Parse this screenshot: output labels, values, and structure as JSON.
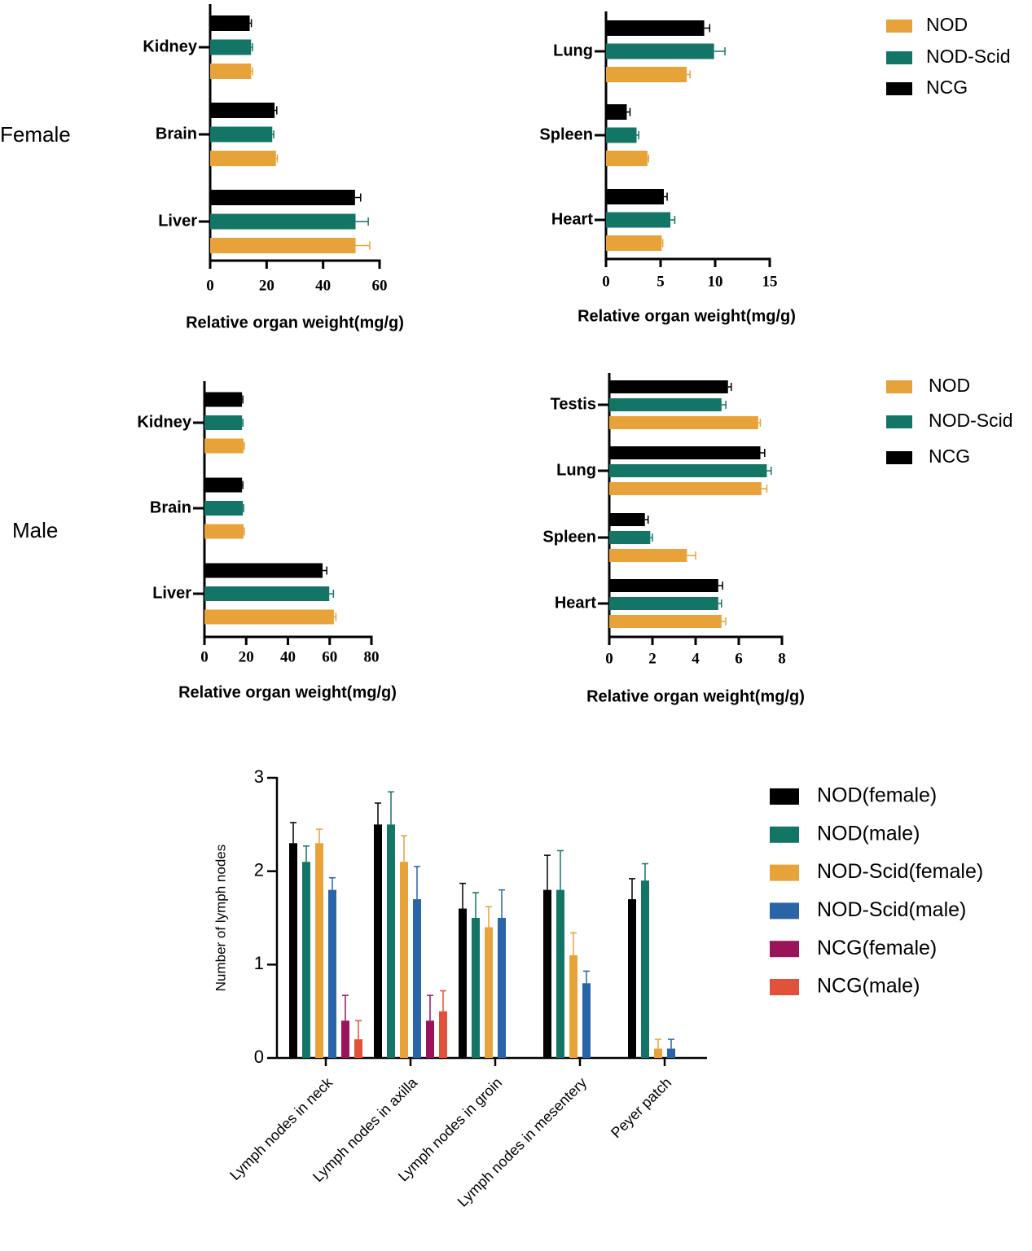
{
  "row_labels": [
    "Female",
    "Male"
  ],
  "chart_data": [
    {
      "type": "bar",
      "orientation": "horizontal",
      "categories": [
        "Kidney",
        "Brain",
        "Liver"
      ],
      "series": [
        {
          "color": "#e8a23a",
          "values": [
            14.5,
            23.3,
            51.5
          ],
          "errors": [
            0.5,
            0.5,
            5
          ]
        },
        {
          "color": "#137565",
          "values": [
            14.5,
            22,
            51.5
          ],
          "errors": [
            0.5,
            0.5,
            4.5
          ]
        },
        {
          "color": "#000000",
          "values": [
            14,
            22.8,
            51.3
          ],
          "errors": [
            0.6,
            0.8,
            2
          ]
        }
      ],
      "xlim": [
        0,
        60
      ],
      "xticks": [
        0,
        20,
        40,
        60
      ],
      "xlabel": "Relative organ weight(mg/g)"
    },
    {
      "type": "bar",
      "orientation": "horizontal",
      "categories": [
        "Lung",
        "Spleen",
        "Heart"
      ],
      "series": [
        {
          "name": "NOD",
          "color": "#e8a23a",
          "values": [
            7.4,
            3.8,
            5.1
          ],
          "errors": [
            0.3,
            0.1,
            0.1
          ]
        },
        {
          "name": "NOD-Scid",
          "color": "#137565",
          "values": [
            9.9,
            2.8,
            5.9
          ],
          "errors": [
            1.0,
            0.2,
            0.4
          ]
        },
        {
          "name": "NCG",
          "color": "#000000",
          "values": [
            9.0,
            1.9,
            5.3
          ],
          "errors": [
            0.5,
            0.3,
            0.3
          ]
        }
      ],
      "xlim": [
        0,
        15
      ],
      "xticks": [
        0,
        5,
        10,
        15
      ],
      "xlabel": "Relative organ weight(mg/g)",
      "legend": "right"
    },
    {
      "type": "bar",
      "orientation": "horizontal",
      "categories": [
        "Kidney",
        "Brain",
        "Liver"
      ],
      "series": [
        {
          "color": "#e8a23a",
          "values": [
            18.7,
            18.7,
            62
          ],
          "errors": [
            0.4,
            0.4,
            1
          ]
        },
        {
          "color": "#137565",
          "values": [
            18,
            18.4,
            59.8
          ],
          "errors": [
            0.4,
            0.4,
            2
          ]
        },
        {
          "color": "#000000",
          "values": [
            18,
            18,
            56.6
          ],
          "errors": [
            0.4,
            0.4,
            2
          ]
        }
      ],
      "xlim": [
        0,
        80
      ],
      "xticks": [
        0,
        20,
        40,
        60,
        80
      ],
      "xlabel": "Relative organ weight(mg/g)"
    },
    {
      "type": "bar",
      "orientation": "horizontal",
      "categories": [
        "Testis",
        "Lung",
        "Spleen",
        "Heart"
      ],
      "series": [
        {
          "name": "NOD",
          "color": "#e8a23a",
          "values": [
            6.9,
            7.05,
            3.6,
            5.2
          ],
          "errors": [
            0.1,
            0.25,
            0.4,
            0.2
          ]
        },
        {
          "name": "NOD-Scid",
          "color": "#137565",
          "values": [
            5.2,
            7.3,
            1.9,
            5.05
          ],
          "errors": [
            0.2,
            0.2,
            0.1,
            0.15
          ]
        },
        {
          "name": "NCG",
          "color": "#000000",
          "values": [
            5.5,
            7.0,
            1.65,
            5.05
          ],
          "errors": [
            0.15,
            0.2,
            0.15,
            0.2
          ]
        }
      ],
      "xlim": [
        0,
        8
      ],
      "xticks": [
        0,
        2,
        4,
        6,
        8
      ],
      "xlabel": "Relative organ weight(mg/g)",
      "legend": "right"
    },
    {
      "type": "bar",
      "categories": [
        "Lymph nodes in neck",
        "Lymph nodes in axilla",
        "Lymph nodes in groin",
        "Lymph nodes in mesentery",
        "Peyer patch"
      ],
      "series": [
        {
          "name": "NOD(female)",
          "color": "#000000",
          "values": [
            2.3,
            2.5,
            1.6,
            1.8,
            1.7
          ],
          "errors": [
            0.22,
            0.23,
            0.27,
            0.37,
            0.22
          ]
        },
        {
          "name": "NOD(male)",
          "color": "#137565",
          "values": [
            2.1,
            2.5,
            1.5,
            1.8,
            1.9
          ],
          "errors": [
            0.17,
            0.35,
            0.27,
            0.42,
            0.18
          ]
        },
        {
          "name": "NOD-Scid(female)",
          "color": "#e8a23a",
          "values": [
            2.3,
            2.1,
            1.4,
            1.1,
            0.1
          ],
          "errors": [
            0.15,
            0.28,
            0.22,
            0.24,
            0.1
          ]
        },
        {
          "name": "NOD-Scid(male)",
          "color": "#2a64a8",
          "values": [
            1.8,
            1.7,
            1.5,
            0.8,
            0.1
          ],
          "errors": [
            0.13,
            0.35,
            0.3,
            0.13,
            0.1
          ]
        },
        {
          "name": "NCG(female)",
          "color": "#99145a",
          "values": [
            0.4,
            0.4,
            0,
            0,
            0
          ],
          "errors": [
            0.27,
            0.27,
            null,
            null,
            null
          ]
        },
        {
          "name": "NCG(male)",
          "color": "#e0523a",
          "values": [
            0.2,
            0.5,
            0,
            0,
            0
          ],
          "errors": [
            0.2,
            0.22,
            null,
            null,
            null
          ]
        }
      ],
      "ylim": [
        0,
        3
      ],
      "yticks": [
        0,
        1,
        2,
        3
      ],
      "ylabel": "Number of lymph nodes",
      "legend": "right"
    }
  ]
}
